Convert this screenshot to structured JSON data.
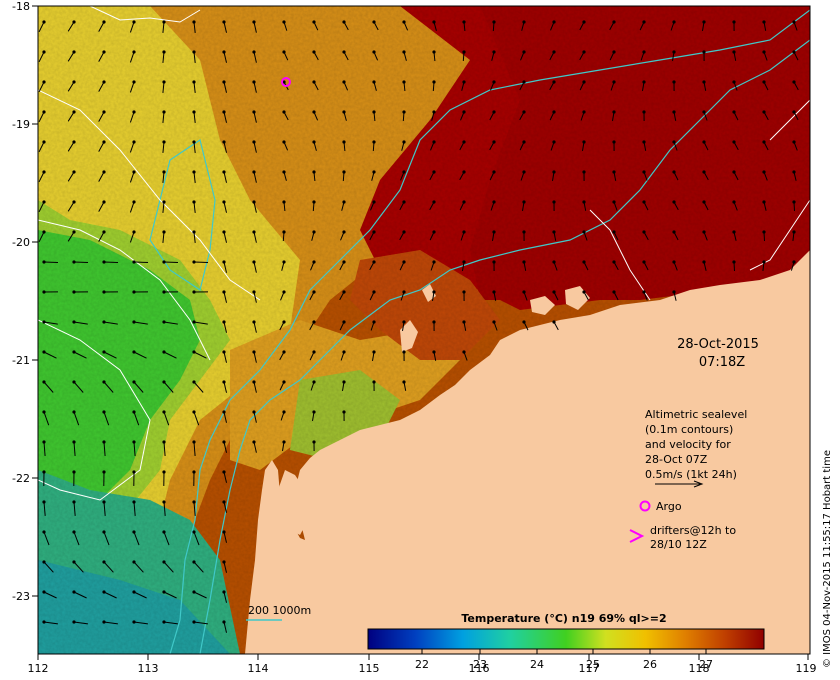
{
  "map": {
    "date": "28-Oct-2015",
    "time": "07:18Z",
    "credit": "© IMOS 04-Nov-2015 11:55:17 Hobart time",
    "legend": {
      "line1": "Altimetric sealevel",
      "line2": "(0.1m contours)",
      "line3": "and velocity for",
      "line4": "28-Oct 07Z",
      "line5": "0.5m/s (1kt 24h)",
      "argo_label": "Argo",
      "drifters_line1": "drifters@12h to",
      "drifters_line2": "28/10 12Z"
    },
    "bathymetry_label": "200  1000m",
    "colorbar": {
      "title": "Temperature (°C) n19 69% ql>=2",
      "ticks": [
        "22",
        "23",
        "24",
        "25",
        "26",
        "27"
      ]
    },
    "x_ticks": [
      "112",
      "113",
      "114",
      "115",
      "116",
      "117",
      "118",
      "119"
    ],
    "y_ticks": [
      "-18",
      "-19",
      "-20",
      "-21",
      "-22",
      "-23"
    ],
    "colors": {
      "land": "#f8c9a0",
      "ocean_warm": "#a00000",
      "ocean_cool": "#20b060",
      "isobath": "#40c8c8",
      "contour": "#ffffff",
      "argo": "#ff00ff"
    }
  }
}
